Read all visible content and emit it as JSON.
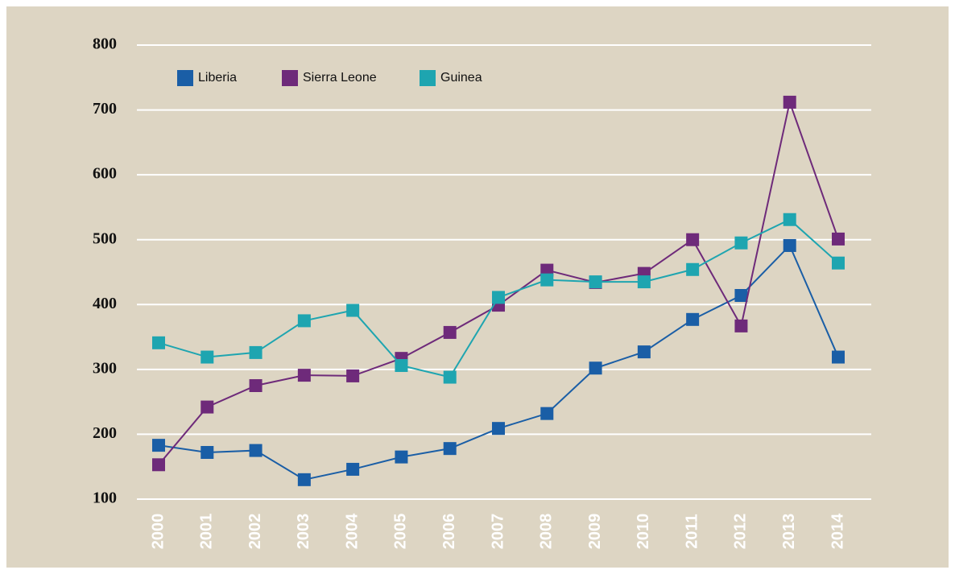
{
  "chart_data": {
    "type": "line",
    "categories": [
      "2000",
      "2001",
      "2002",
      "2003",
      "2004",
      "2005",
      "2006",
      "2007",
      "2008",
      "2009",
      "2010",
      "2011",
      "2012",
      "2013",
      "2014"
    ],
    "series": [
      {
        "name": "Liberia",
        "color": "#1a5ea6",
        "values": [
          183,
          172,
          175,
          130,
          146,
          165,
          178,
          209,
          232,
          302,
          327,
          377,
          414,
          491,
          319
        ]
      },
      {
        "name": "Sierra Leone",
        "color": "#6e2a7a",
        "values": [
          153,
          242,
          275,
          291,
          290,
          317,
          357,
          399,
          453,
          434,
          448,
          500,
          367,
          712,
          501
        ]
      },
      {
        "name": "Guinea",
        "color": "#1ea5b0",
        "values": [
          341,
          319,
          326,
          375,
          391,
          306,
          288,
          411,
          438,
          435,
          435,
          454,
          495,
          531,
          464
        ]
      }
    ],
    "ylim": [
      100,
      800
    ],
    "yticks": [
      100,
      200,
      300,
      400,
      500,
      600,
      700,
      800
    ],
    "grid": true,
    "legend": "top-left"
  }
}
